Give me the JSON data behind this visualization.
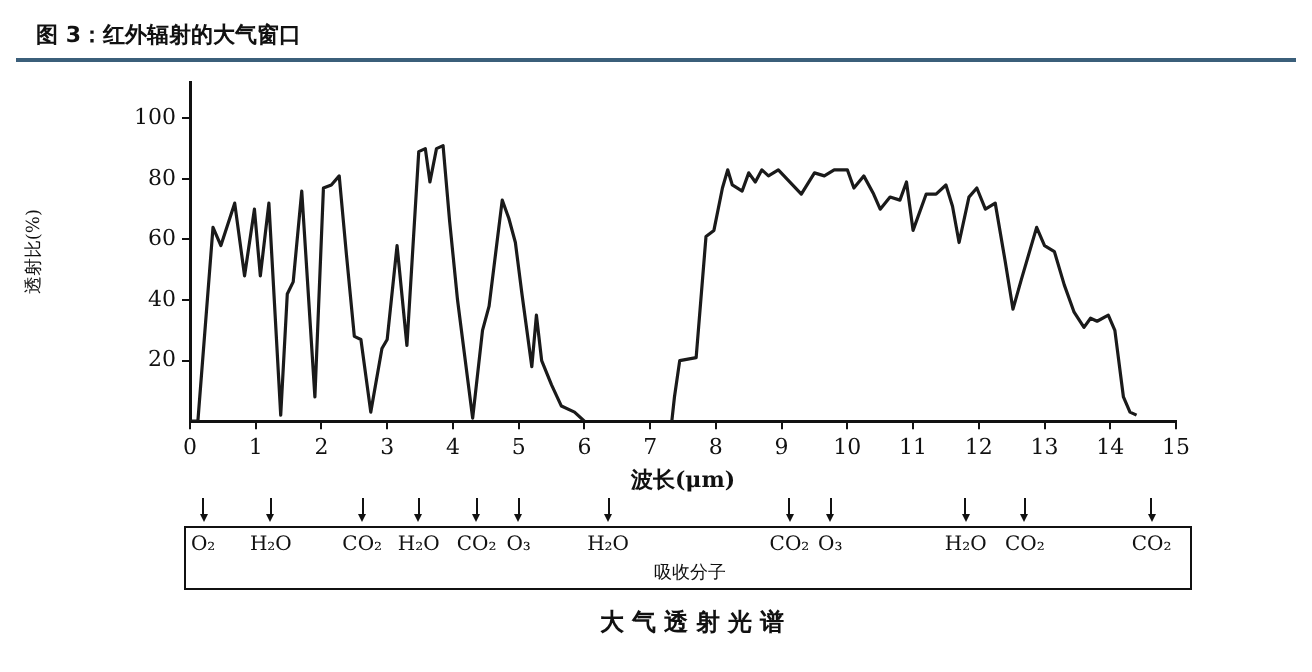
{
  "chart_data": {
    "type": "line",
    "title": "图 3：红外辐射的大气窗口",
    "xlabel": "波长(μm)",
    "ylabel": "透射比(%)",
    "xlim": [
      0,
      15
    ],
    "xticks": [
      0,
      1,
      2,
      3,
      4,
      5,
      6,
      7,
      8,
      9,
      10,
      11,
      12,
      13,
      14,
      15
    ],
    "ylim": [
      0,
      112
    ],
    "yticks": [
      20,
      40,
      60,
      80,
      100
    ],
    "grid": false,
    "legend": false,
    "marker": "none",
    "line_style": "solid",
    "series": [
      {
        "color": "#1a1a1a",
        "x": [
          0,
          0.12,
          0.35,
          0.47,
          0.68,
          0.83,
          0.98,
          1.07,
          1.2,
          1.38,
          1.48,
          1.57,
          1.7,
          1.9,
          2.03,
          2.15,
          2.27,
          2.38,
          2.5,
          2.6,
          2.75,
          2.92,
          3.0,
          3.15,
          3.3,
          3.48,
          3.58,
          3.65,
          3.75,
          3.85,
          3.95,
          4.07,
          4.3,
          4.45,
          4.55,
          4.75,
          4.85,
          4.95,
          5.05,
          5.2,
          5.27,
          5.35,
          5.5,
          5.65,
          5.85,
          6.0,
          6.6,
          7.33,
          7.37,
          7.45,
          7.7,
          7.85,
          7.97,
          8.1,
          8.18,
          8.25,
          8.4,
          8.5,
          8.6,
          8.7,
          8.8,
          8.95,
          9.3,
          9.5,
          9.65,
          9.8,
          10.0,
          10.1,
          10.25,
          10.4,
          10.5,
          10.65,
          10.8,
          10.9,
          11.0,
          11.2,
          11.35,
          11.5,
          11.6,
          11.7,
          11.85,
          11.97,
          12.1,
          12.25,
          12.4,
          12.52,
          12.65,
          12.88,
          13.0,
          13.15,
          13.3,
          13.45,
          13.6,
          13.7,
          13.8,
          13.97,
          14.07,
          14.2,
          14.3,
          14.4
        ],
        "values": [
          0,
          0,
          64,
          58,
          72,
          48,
          70,
          48,
          72,
          2,
          42,
          46,
          76,
          8,
          77,
          78,
          81,
          55,
          28,
          27,
          3,
          24,
          27,
          58,
          25,
          89,
          90,
          79,
          90,
          91,
          66,
          40,
          1,
          30,
          38,
          73,
          67,
          59,
          42,
          18,
          35,
          20,
          12,
          5,
          3,
          0,
          null,
          0,
          8,
          20,
          21,
          61,
          63,
          77,
          83,
          78,
          76,
          82,
          79,
          83,
          81,
          83,
          75,
          82,
          81,
          83,
          83,
          77,
          81,
          75,
          70,
          74,
          73,
          79,
          63,
          75,
          75,
          78,
          71,
          59,
          74,
          77,
          70,
          72,
          53,
          37,
          47,
          64,
          58,
          56,
          45,
          36,
          31,
          34,
          33,
          35,
          30,
          8,
          3,
          2
        ]
      }
    ],
    "annotations": [
      "O₂",
      "H₂O",
      "CO₂",
      "H₂O",
      "CO₂",
      "O₃",
      "H₂O",
      "CO₂",
      "O₃",
      "H₂O",
      "CO₂",
      "CO₂",
      "吸收分子",
      "大气透射光谱"
    ]
  }
}
